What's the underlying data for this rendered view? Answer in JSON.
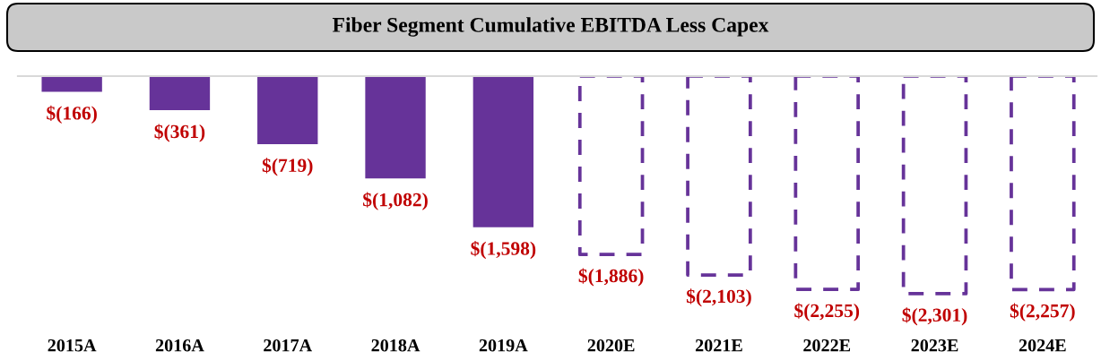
{
  "chart_data": {
    "type": "bar",
    "title": "Fiber Segment Cumulative EBITDA Less Capex",
    "categories": [
      "2015A",
      "2016A",
      "2017A",
      "2018A",
      "2019A",
      "2020E",
      "2021E",
      "2022E",
      "2023E",
      "2024E"
    ],
    "series": [
      {
        "color": "#663399",
        "values": [
          -166,
          -361,
          -719,
          -1082,
          -1598,
          null,
          null,
          null,
          null,
          null
        ],
        "value_labels": [
          "$(166)",
          "$(361)",
          "$(719)",
          "$(1,082)",
          "$(1,598)",
          null,
          null,
          null,
          null,
          null
        ]
      },
      {
        "color": "#663399",
        "line_style": "dashed",
        "values": [
          null,
          null,
          null,
          null,
          null,
          -1886,
          -2103,
          -2255,
          -2301,
          -2257
        ],
        "value_labels": [
          null,
          null,
          null,
          null,
          null,
          "$(1,886)",
          "$(2,103)",
          "$(2,255)",
          "$(2,301)",
          "$(2,257)"
        ]
      }
    ],
    "grid": false
  }
}
